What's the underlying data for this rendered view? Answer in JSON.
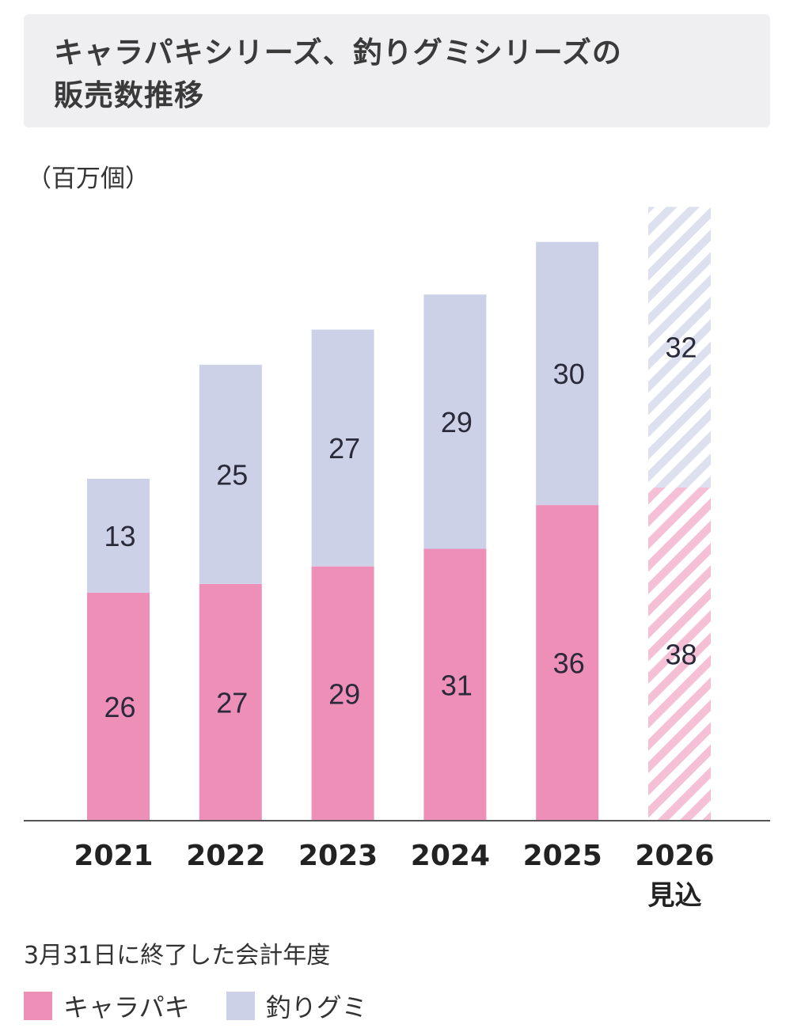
{
  "chart_data": {
    "type": "bar",
    "stacked": true,
    "title": "キャラパキシリーズ、釣りグミシリーズの\n販売数推移",
    "ylabel": "（百万個）",
    "xlabel": "3月31日に終了した会計年度",
    "categories": [
      "2021",
      "2022",
      "2023",
      "2024",
      "2025",
      "2026"
    ],
    "category_sublabels": [
      "",
      "",
      "",
      "",
      "",
      "見込"
    ],
    "forecast": [
      false,
      false,
      false,
      false,
      false,
      true
    ],
    "series": [
      {
        "name": "キャラパキ",
        "color": "#ee8fb8",
        "values": [
          26,
          27,
          29,
          31,
          36,
          38
        ]
      },
      {
        "name": "釣りグミ",
        "color": "#cdd1e8",
        "values": [
          13,
          25,
          27,
          29,
          30,
          32
        ]
      }
    ],
    "ylim": [
      0,
      70
    ],
    "grid": false,
    "legend": "bottom-left"
  }
}
